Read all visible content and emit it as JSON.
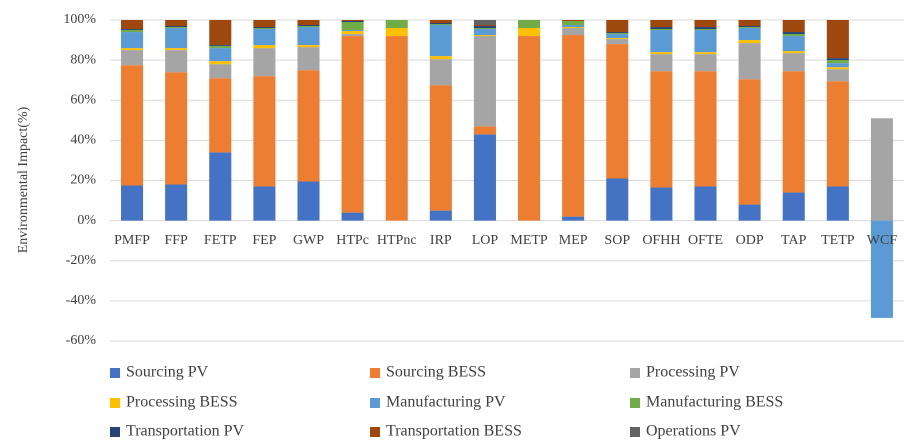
{
  "chart_data": {
    "type": "stacked_bar",
    "y_label": "Environmental Impact(%)",
    "categories": [
      "PMFP",
      "FFP",
      "FETP",
      "FEP",
      "GWP",
      "HTPc",
      "HTPnc",
      "IRP",
      "LOP",
      "METP",
      "MEP",
      "SOP",
      "OFHH",
      "OFTE",
      "ODP",
      "TAP",
      "TETP",
      "WCF"
    ],
    "ylim": [
      -60,
      100
    ],
    "yticks": [
      {
        "value": -60,
        "label": "-60%"
      },
      {
        "value": -40,
        "label": "-40%"
      },
      {
        "value": -20,
        "label": "-20%"
      },
      {
        "value": 0,
        "label": "0%"
      },
      {
        "value": 20,
        "label": "20%"
      },
      {
        "value": 40,
        "label": "40%"
      },
      {
        "value": 60,
        "label": "60%"
      },
      {
        "value": 80,
        "label": "80%"
      },
      {
        "value": 100,
        "label": "100%"
      }
    ],
    "series": [
      {
        "name": "Sourcing PV",
        "color": "#4472c4",
        "values": [
          17.5,
          18,
          34,
          17,
          19.5,
          4,
          0,
          5,
          43,
          0,
          2,
          21,
          16.5,
          17,
          8,
          14,
          17,
          0
        ]
      },
      {
        "name": "Sourcing BESS",
        "color": "#ed7d31",
        "values": [
          60,
          56,
          37,
          55,
          55.5,
          88,
          92,
          62.5,
          4,
          92,
          90.5,
          67,
          58,
          57.5,
          62.5,
          60.5,
          52.5,
          0
        ]
      },
      {
        "name": "Processing PV",
        "color": "#a5a5a5",
        "values": [
          7.5,
          11,
          7,
          14,
          11.5,
          1,
          0,
          13,
          45,
          0,
          3.5,
          2.5,
          8.5,
          8.5,
          18,
          9,
          6,
          51
        ]
      },
      {
        "name": "Processing BESS",
        "color": "#ffc000",
        "values": [
          1,
          1,
          1.5,
          1.5,
          1,
          1.5,
          4,
          1.5,
          0.5,
          4,
          0.5,
          0.5,
          1,
          1,
          1.5,
          1,
          1,
          0
        ]
      },
      {
        "name": "Manufacturing PV",
        "color": "#5b9bd5",
        "values": [
          8,
          10,
          6.5,
          8,
          9,
          0.5,
          0,
          15.5,
          3,
          0,
          1,
          2,
          11,
          11,
          6,
          7.5,
          2,
          -48.5
        ]
      },
      {
        "name": "Manufacturing BESS",
        "color": "#70ad47",
        "values": [
          1,
          0.5,
          1,
          0.5,
          0.5,
          4,
          4,
          0.5,
          0.5,
          4,
          2,
          0.5,
          0.5,
          0.5,
          0.5,
          1,
          1.5,
          0
        ]
      },
      {
        "name": "Transportation PV",
        "color": "#264478",
        "values": [
          0.5,
          0.5,
          0.5,
          0.5,
          0.5,
          0.5,
          0,
          0.5,
          1,
          0,
          0,
          0.5,
          1,
          1,
          0.5,
          1,
          1,
          0
        ]
      },
      {
        "name": "Transportation BESS",
        "color": "#9e480e",
        "values": [
          4.5,
          3,
          12.5,
          3.5,
          2.5,
          0.5,
          0,
          1.5,
          0.5,
          0,
          0.5,
          6,
          3.5,
          3.5,
          3,
          6,
          19,
          0
        ]
      },
      {
        "name": "Operations PV",
        "color": "#636363",
        "values": [
          0,
          0,
          0,
          0,
          0,
          0,
          0,
          0,
          2.5,
          0,
          0,
          0,
          0,
          0,
          0,
          0,
          0,
          0
        ]
      }
    ],
    "grid": true,
    "legend": "bottom"
  }
}
